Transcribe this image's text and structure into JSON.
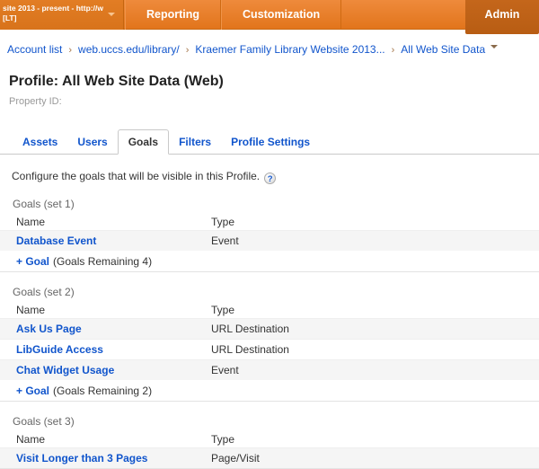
{
  "topbar": {
    "account_selector": {
      "line1": "site 2013 - present - http://ww...",
      "line2": "[LT]"
    },
    "nav": [
      {
        "label": "Reporting"
      },
      {
        "label": "Customization"
      }
    ],
    "admin_label": "Admin"
  },
  "breadcrumb": {
    "items": [
      "Account list",
      "web.uccs.edu/library/",
      "Kraemer Family Library Website 2013...",
      "All Web Site Data"
    ]
  },
  "page": {
    "title": "Profile: All Web Site Data (Web)",
    "property_id_label": "Property ID:"
  },
  "tabs": [
    {
      "label": "Assets",
      "active": false
    },
    {
      "label": "Users",
      "active": false
    },
    {
      "label": "Goals",
      "active": true
    },
    {
      "label": "Filters",
      "active": false
    },
    {
      "label": "Profile Settings",
      "active": false
    }
  ],
  "intro": {
    "text": "Configure the goals that will be visible in this Profile.",
    "help_icon": "?"
  },
  "goal_sets": [
    {
      "label": "Goals (set 1)",
      "columns": {
        "name": "Name",
        "type": "Type"
      },
      "goals": [
        {
          "name": "Database Event",
          "type": "Event"
        }
      ],
      "add_goal": {
        "link": "+ Goal",
        "remaining": "(Goals Remaining 4)"
      }
    },
    {
      "label": "Goals (set 2)",
      "columns": {
        "name": "Name",
        "type": "Type"
      },
      "goals": [
        {
          "name": "Ask Us Page",
          "type": "URL Destination"
        },
        {
          "name": "LibGuide Access",
          "type": "URL Destination"
        },
        {
          "name": "Chat Widget Usage",
          "type": "Event"
        }
      ],
      "add_goal": {
        "link": "+ Goal",
        "remaining": "(Goals Remaining 2)"
      }
    },
    {
      "label": "Goals (set 3)",
      "columns": {
        "name": "Name",
        "type": "Type"
      },
      "goals": [
        {
          "name": "Visit Longer than 3 Pages",
          "type": "Page/Visit"
        }
      ],
      "add_goal": null
    }
  ],
  "colors": {
    "topbar_orange": "#e2751c",
    "admin_orange": "#b85d13",
    "link_blue": "#1155cc",
    "row_stripe": "#f5f5f5"
  }
}
